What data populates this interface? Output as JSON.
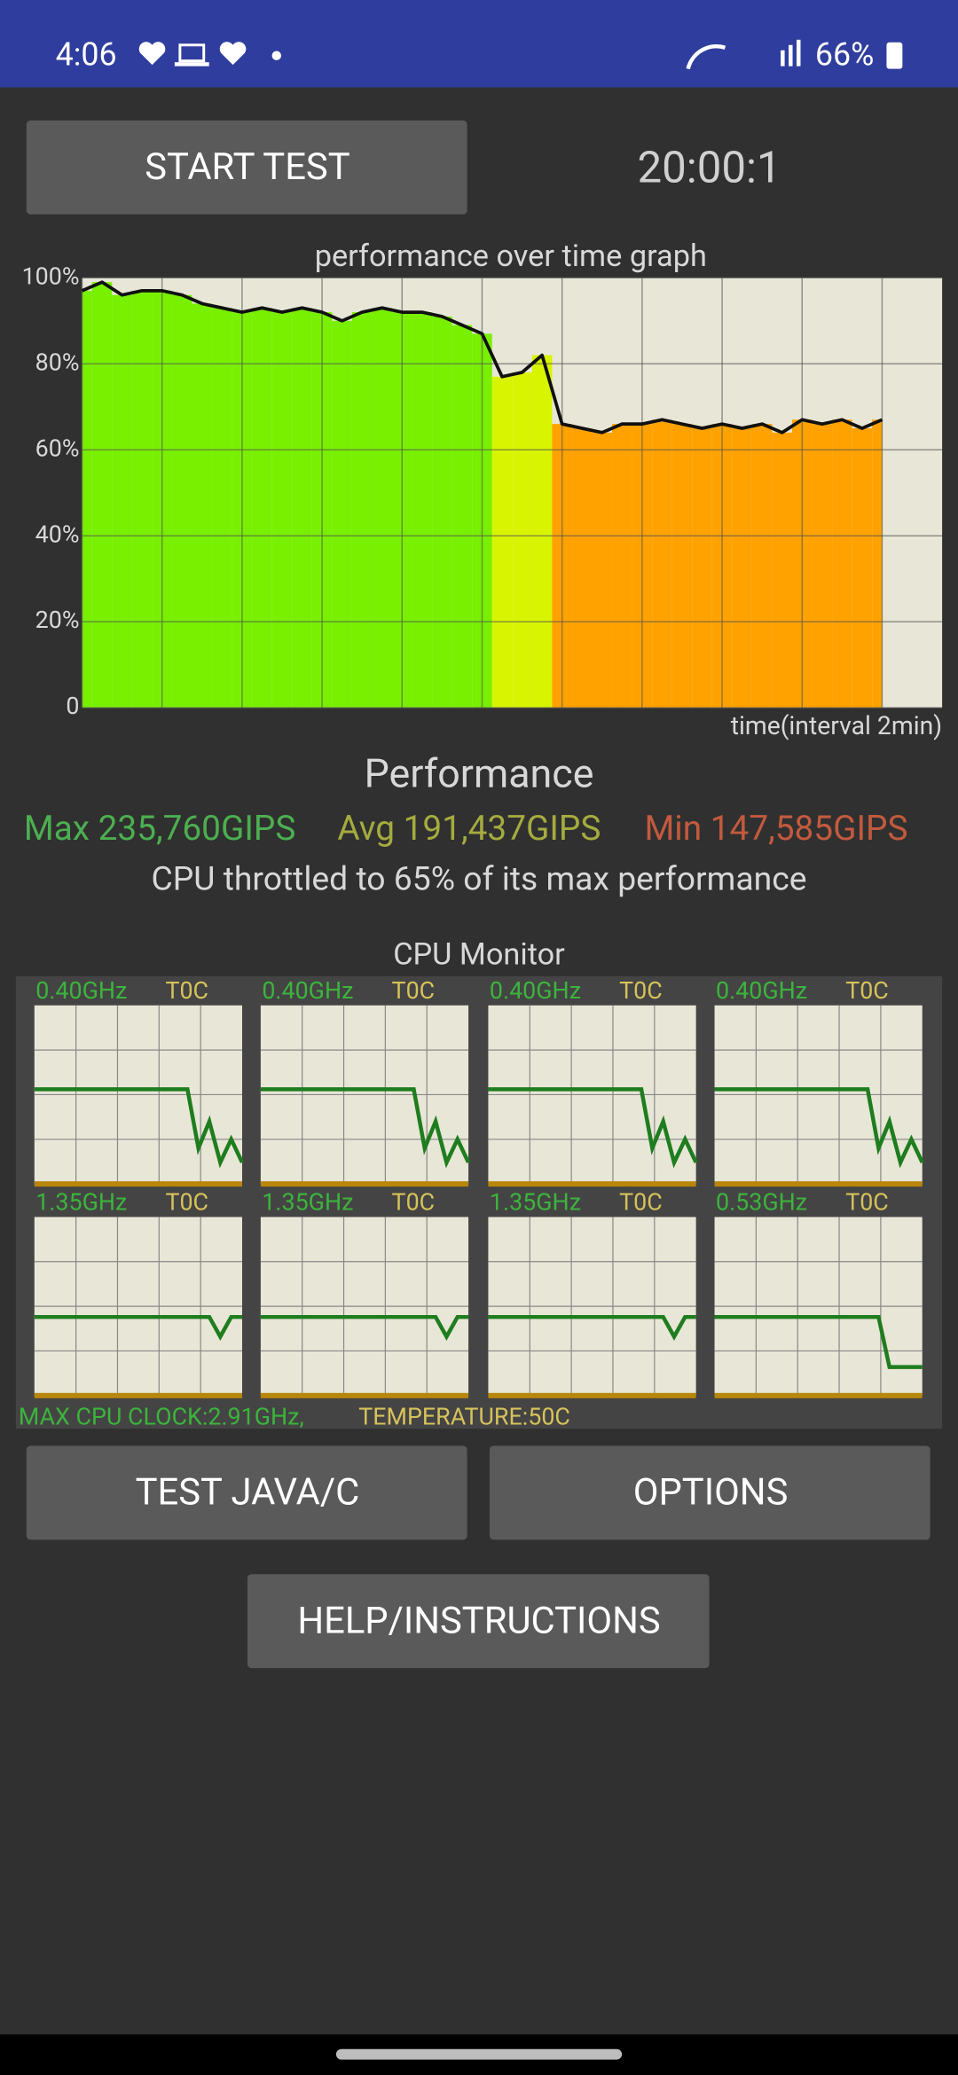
{
  "status_bar": {
    "time": "4:06",
    "battery": "66%"
  },
  "start_button": "START TEST",
  "timer": "20:00:1",
  "graph": {
    "title": "performance over time graph",
    "x_label": "time(interval 2min)",
    "ylim": [
      0,
      100
    ],
    "yticks": [
      {
        "value": 100,
        "label": "100%"
      },
      {
        "value": 80,
        "label": "80%"
      },
      {
        "value": 60,
        "label": "60%"
      },
      {
        "value": 40,
        "label": "40%"
      },
      {
        "value": 20,
        "label": "20%"
      },
      0
    ],
    "xlim": [
      0,
      10.75
    ],
    "xticks": [
      0,
      1,
      2,
      3,
      4,
      5,
      6,
      7,
      8,
      9,
      10
    ],
    "x": [
      0,
      0.25,
      0.5,
      0.75,
      1,
      1.25,
      1.5,
      1.75,
      2,
      2.25,
      2.5,
      2.75,
      3,
      3.25,
      3.5,
      3.75,
      4,
      4.25,
      4.5,
      4.75,
      5,
      5.25,
      5.5,
      5.75,
      6,
      6.25,
      6.5,
      6.75,
      7,
      7.25,
      7.5,
      7.75,
      8,
      8.25,
      8.5,
      8.75,
      9,
      9.25,
      9.5,
      9.75,
      10
    ],
    "values": [
      97,
      99,
      96,
      97,
      97,
      96,
      94,
      93,
      92,
      93,
      92,
      93,
      92,
      90,
      92,
      93,
      92,
      92,
      91,
      89,
      87,
      77,
      78,
      82,
      66,
      65,
      64,
      66,
      66,
      67,
      66,
      65,
      66,
      65,
      66,
      64,
      67,
      66,
      67,
      65,
      67
    ]
  },
  "performance": {
    "title": "Performance",
    "max": "Max 235,760GIPS",
    "avg": "Avg 191,437GIPS",
    "min": "Min 147,585GIPS",
    "note": "CPU throttled to 65% of its max performance"
  },
  "cpu_monitor": {
    "title": "CPU Monitor",
    "ylim": [
      0,
      100
    ],
    "cores": [
      {
        "frequency": "0.40GHz",
        "temperature": "T0C",
        "values": [
          53,
          53,
          53,
          53,
          53,
          53,
          53,
          53,
          53,
          53,
          53,
          53,
          53,
          53,
          53,
          20,
          35,
          12,
          25,
          12
        ]
      },
      {
        "frequency": "0.40GHz",
        "temperature": "T0C",
        "values": [
          53,
          53,
          53,
          53,
          53,
          53,
          53,
          53,
          53,
          53,
          53,
          53,
          53,
          53,
          53,
          20,
          35,
          12,
          25,
          12
        ]
      },
      {
        "frequency": "0.40GHz",
        "temperature": "T0C",
        "values": [
          53,
          53,
          53,
          53,
          53,
          53,
          53,
          53,
          53,
          53,
          53,
          53,
          53,
          53,
          53,
          20,
          35,
          12,
          25,
          12
        ]
      },
      {
        "frequency": "0.40GHz",
        "temperature": "T0C",
        "values": [
          53,
          53,
          53,
          53,
          53,
          53,
          53,
          53,
          53,
          53,
          53,
          53,
          53,
          53,
          53,
          20,
          35,
          12,
          25,
          12
        ]
      },
      {
        "frequency": "1.35GHz",
        "temperature": "T0C",
        "values": [
          44,
          44,
          44,
          44,
          44,
          44,
          44,
          44,
          44,
          44,
          44,
          44,
          44,
          44,
          44,
          44,
          44,
          33,
          44,
          44
        ]
      },
      {
        "frequency": "1.35GHz",
        "temperature": "T0C",
        "values": [
          44,
          44,
          44,
          44,
          44,
          44,
          44,
          44,
          44,
          44,
          44,
          44,
          44,
          44,
          44,
          44,
          44,
          33,
          44,
          44
        ]
      },
      {
        "frequency": "1.35GHz",
        "temperature": "T0C",
        "values": [
          44,
          44,
          44,
          44,
          44,
          44,
          44,
          44,
          44,
          44,
          44,
          44,
          44,
          44,
          44,
          44,
          44,
          33,
          44,
          44
        ]
      },
      {
        "frequency": "0.53GHz",
        "temperature": "T0C",
        "values": [
          44,
          44,
          44,
          44,
          44,
          44,
          44,
          44,
          44,
          44,
          44,
          44,
          44,
          44,
          44,
          44,
          16,
          16,
          16,
          16
        ]
      }
    ],
    "max_clock": "MAX CPU CLOCK:2.91GHz,",
    "temperature": "TEMPERATURE:50C"
  },
  "buttons": [
    "TEST JAVA/C",
    "OPTIONS",
    "HELP/INSTRUCTIONS"
  ]
}
